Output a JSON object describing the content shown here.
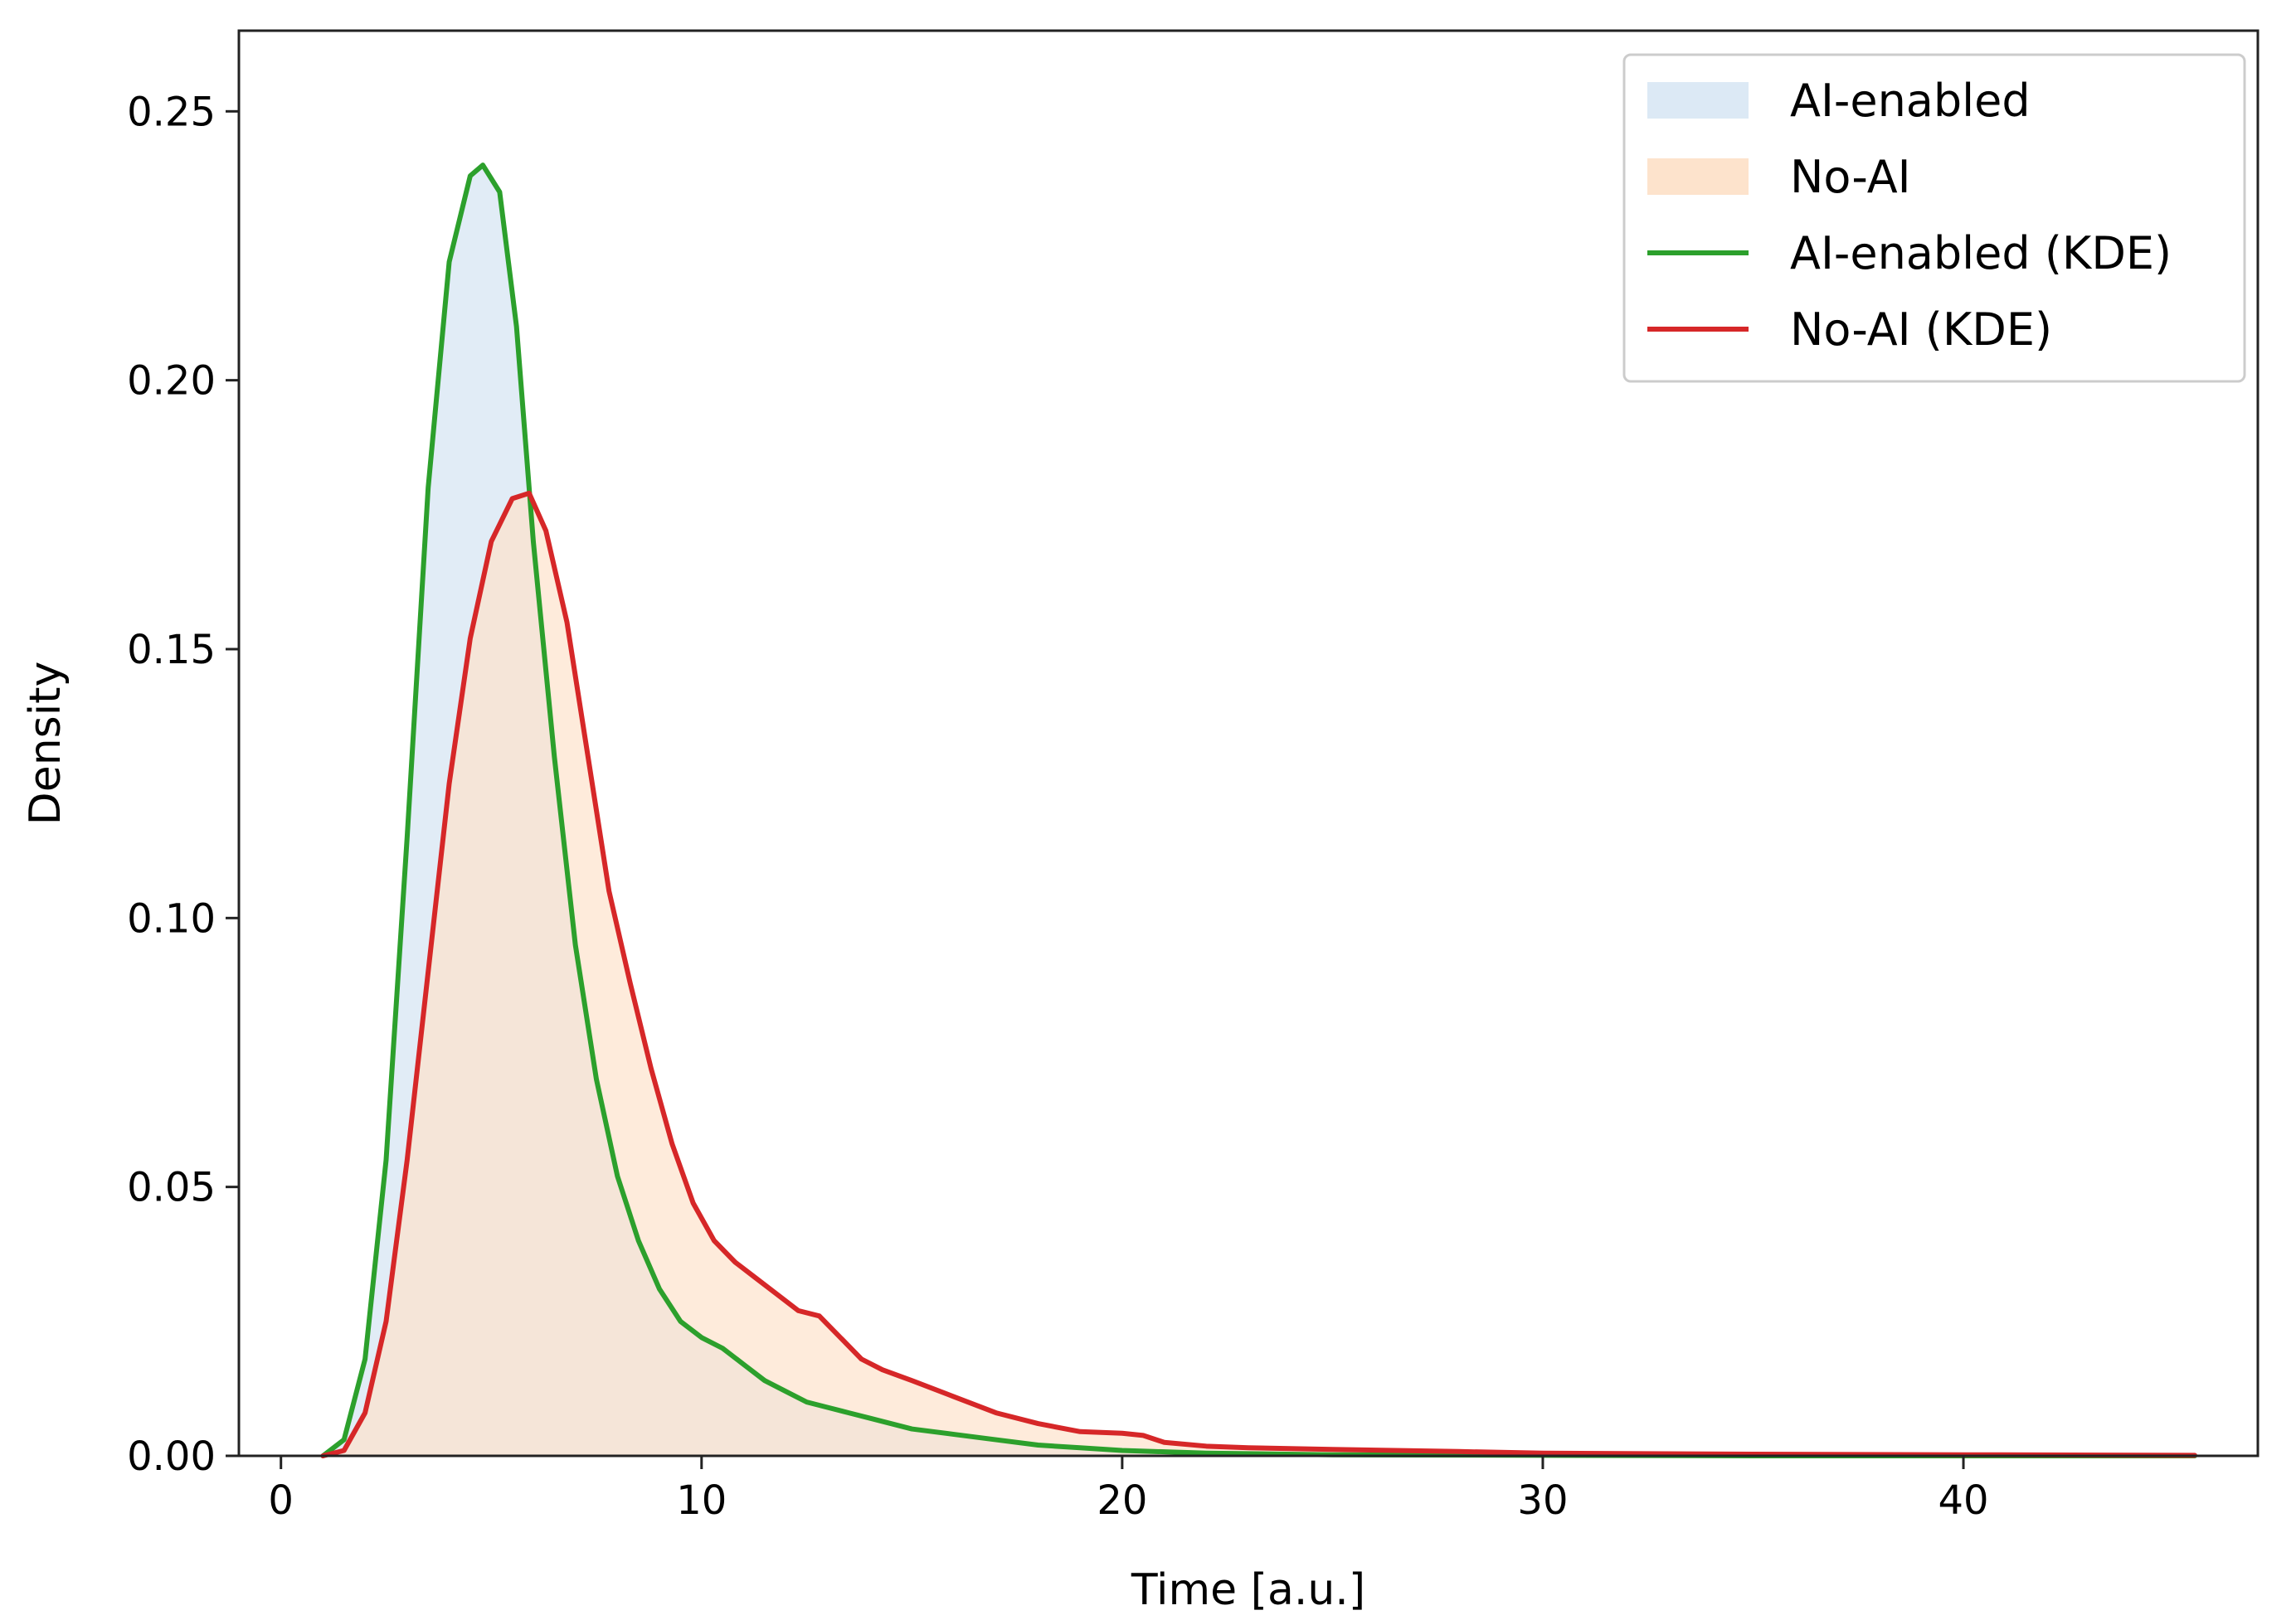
{
  "chart_data": {
    "type": "line",
    "title": "",
    "xlabel": "Time [a.u.]",
    "ylabel": "Density",
    "xlim": [
      -1,
      47
    ],
    "ylim": [
      0,
      0.265
    ],
    "xticks": [
      0,
      10,
      20,
      30,
      40
    ],
    "yticks": [
      0.0,
      0.05,
      0.1,
      0.15,
      0.2,
      0.25
    ],
    "xtick_labels": [
      "0",
      "10",
      "20",
      "30",
      "40"
    ],
    "ytick_labels": [
      "0.00",
      "0.05",
      "0.10",
      "0.15",
      "0.20",
      "0.25"
    ],
    "grid": false,
    "legend_position": "top-right",
    "legend": [
      {
        "label": "AI-enabled",
        "kind": "fill",
        "color": "#dce9f5"
      },
      {
        "label": "No-AI",
        "kind": "fill",
        "color": "#fde3cc"
      },
      {
        "label": "AI-enabled (KDE)",
        "kind": "line",
        "color": "#2ca02c"
      },
      {
        "label": "No-AI (KDE)",
        "kind": "line",
        "color": "#d62728"
      }
    ],
    "series": [
      {
        "name": "AI-enabled (KDE)",
        "color": "#2ca02c",
        "fill_color": "#dce9f5",
        "x": [
          1.0,
          1.5,
          2.0,
          2.5,
          3.0,
          3.5,
          4.0,
          4.5,
          4.8,
          5.2,
          5.6,
          6.0,
          6.5,
          7.0,
          7.5,
          8.0,
          8.5,
          9.0,
          9.5,
          10.0,
          10.5,
          11.0,
          11.5,
          12.0,
          12.5,
          13.0,
          13.5,
          14.0,
          15.0,
          16.0,
          17.0,
          18.0,
          19.0,
          20.0,
          22.0,
          25.0,
          30.0,
          35.0,
          40.0,
          45.5
        ],
        "y": [
          0.0,
          0.003,
          0.018,
          0.055,
          0.115,
          0.18,
          0.222,
          0.238,
          0.24,
          0.235,
          0.21,
          0.17,
          0.13,
          0.095,
          0.07,
          0.052,
          0.04,
          0.031,
          0.025,
          0.022,
          0.02,
          0.017,
          0.014,
          0.012,
          0.01,
          0.009,
          0.008,
          0.007,
          0.005,
          0.004,
          0.003,
          0.002,
          0.0015,
          0.001,
          0.0005,
          0.0002,
          0.0001,
          0.0,
          0.0,
          0.0
        ]
      },
      {
        "name": "No-AI (KDE)",
        "color": "#d62728",
        "fill_color": "#fde3cc",
        "x": [
          1.0,
          1.5,
          2.0,
          2.5,
          3.0,
          3.5,
          4.0,
          4.5,
          5.0,
          5.5,
          5.9,
          6.3,
          6.8,
          7.3,
          7.8,
          8.3,
          8.8,
          9.3,
          9.8,
          10.3,
          10.8,
          11.3,
          11.8,
          12.3,
          12.8,
          13.3,
          13.8,
          14.3,
          15.0,
          16.0,
          17.0,
          18.0,
          19.0,
          20.0,
          20.5,
          21.0,
          22.0,
          23.0,
          25.0,
          28.0,
          30.0,
          35.0,
          40.0,
          45.5
        ],
        "y": [
          0.0,
          0.001,
          0.008,
          0.025,
          0.055,
          0.09,
          0.125,
          0.152,
          0.17,
          0.178,
          0.179,
          0.172,
          0.155,
          0.13,
          0.105,
          0.088,
          0.072,
          0.058,
          0.047,
          0.04,
          0.036,
          0.033,
          0.03,
          0.027,
          0.026,
          0.022,
          0.018,
          0.016,
          0.014,
          0.011,
          0.008,
          0.006,
          0.0045,
          0.0042,
          0.0038,
          0.0025,
          0.0018,
          0.0015,
          0.0012,
          0.0008,
          0.0005,
          0.0003,
          0.0002,
          0.0001
        ]
      }
    ]
  }
}
